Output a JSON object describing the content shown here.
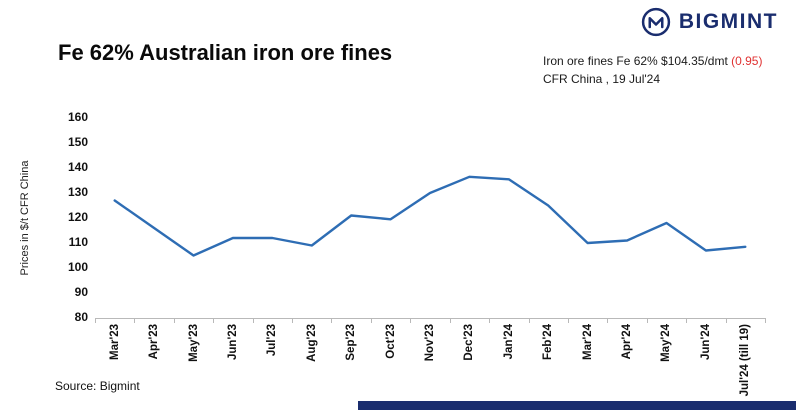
{
  "brand": {
    "name": "BIGMINT",
    "color": "#1a2d6e"
  },
  "header": {
    "title": "Fe 62% Australian iron ore fines",
    "quote": {
      "part1": "Iron ore fines Fe 62% $104.35/dmt ",
      "change": "(0.95)",
      "change_color": "#e03131",
      "line2": "CFR China , 19 Jul'24"
    }
  },
  "source": "Source: Bigmint",
  "chart_data": {
    "type": "line",
    "title": "Fe 62% Australian iron ore fines",
    "categories": [
      "Mar'23",
      "Apr'23",
      "May'23",
      "Jun'23",
      "Jul'23",
      "Aug'23",
      "Sep'23",
      "Oct'23",
      "Nov'23",
      "Dec'23",
      "Jan'24",
      "Feb'24",
      "Mar'24",
      "Apr'24",
      "May'24",
      "Jun'24",
      "Jul'24 (till 19)"
    ],
    "values": [
      127,
      116,
      105,
      112,
      112,
      109,
      121,
      119.5,
      130,
      136.5,
      135.5,
      125,
      110,
      111,
      118,
      107,
      108.5
    ],
    "xlabel": "",
    "ylabel": "Prices in $/t CFR China",
    "ylim": [
      80,
      160
    ],
    "ytick_step": 10,
    "line_color": "#2e6db4",
    "grid": false,
    "legend": "none"
  }
}
